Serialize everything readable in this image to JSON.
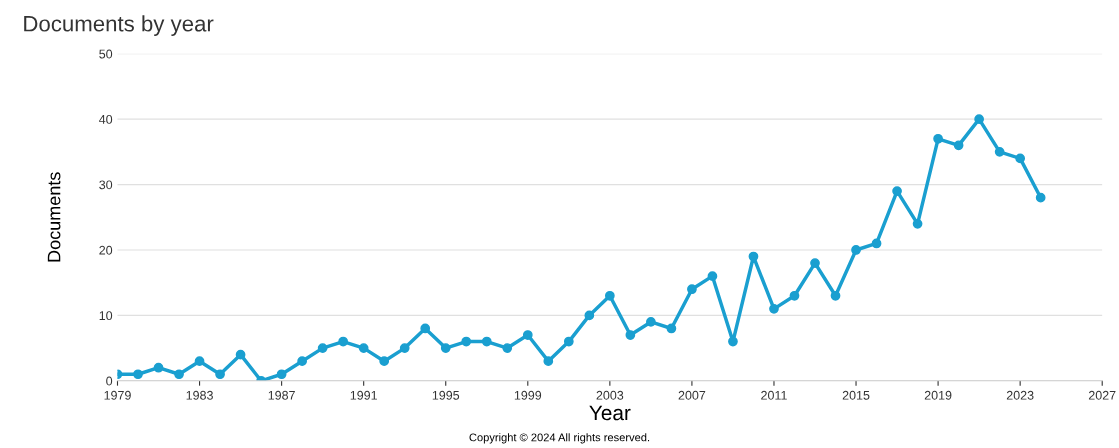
{
  "chart_data": {
    "type": "line",
    "title": "Documents by year",
    "xlabel": "Year",
    "ylabel": "Documents",
    "x": [
      1979,
      1980,
      1981,
      1982,
      1983,
      1984,
      1985,
      1986,
      1987,
      1988,
      1989,
      1990,
      1991,
      1992,
      1993,
      1994,
      1995,
      1996,
      1997,
      1998,
      1999,
      2000,
      2001,
      2002,
      2003,
      2004,
      2005,
      2006,
      2007,
      2008,
      2009,
      2010,
      2011,
      2012,
      2013,
      2014,
      2015,
      2016,
      2017,
      2018,
      2019,
      2020,
      2021,
      2022,
      2023,
      2024
    ],
    "series": [
      {
        "color": "#1a9fd0",
        "values": [
          1,
          1,
          2,
          1,
          3,
          1,
          4,
          0,
          1,
          3,
          5,
          6,
          5,
          3,
          5,
          8,
          5,
          6,
          6,
          5,
          7,
          3,
          6,
          10,
          13,
          7,
          9,
          8,
          14,
          16,
          6,
          19,
          11,
          13,
          18,
          13,
          20,
          21,
          29,
          24,
          37,
          36,
          40,
          35,
          34,
          28
        ]
      }
    ],
    "xlim": [
      1979,
      2027
    ],
    "xticks": [
      1979,
      1983,
      1987,
      1991,
      1995,
      1999,
      2003,
      2007,
      2011,
      2015,
      2019,
      2023,
      2027
    ],
    "ylim": [
      0,
      50
    ],
    "yticks": [
      0,
      10,
      20,
      30,
      40,
      50
    ],
    "grid": "y",
    "marker": "circle",
    "line_style": "solid",
    "annotations": [
      "Copyright © 2024 All rights reserved."
    ]
  }
}
